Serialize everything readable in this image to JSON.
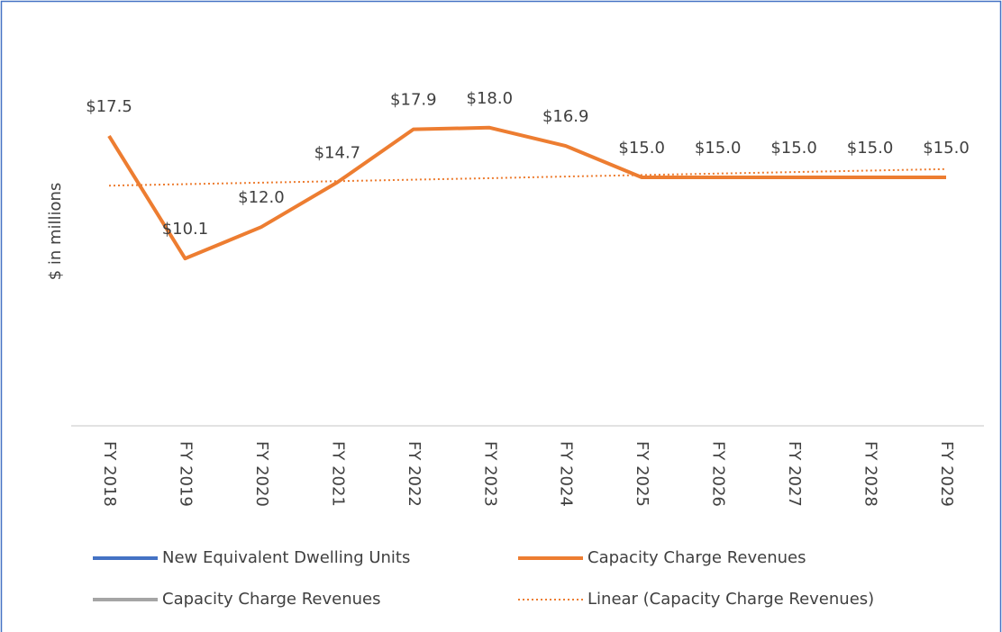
{
  "chart_data": {
    "type": "line",
    "y_label": "$ in millions",
    "categories": [
      "FY 2018",
      "FY 2019",
      "FY 2020",
      "FY 2021",
      "FY 2022",
      "FY 2023",
      "FY 2024",
      "FY 2025",
      "FY 2026",
      "FY 2027",
      "FY 2028",
      "FY 2029"
    ],
    "ylim": [
      0,
      20
    ],
    "series": [
      {
        "name": "New Equivalent Dwelling Units",
        "color": "#4472c4",
        "values": [
          null,
          null,
          null,
          null,
          null,
          null,
          null,
          null,
          null,
          null,
          null,
          null
        ]
      },
      {
        "name": "Capacity Charge Revenues",
        "color": "#ed7d31",
        "values": [
          17.5,
          10.1,
          12.0,
          14.7,
          17.9,
          18.0,
          16.9,
          15.0,
          15.0,
          15.0,
          15.0,
          15.0
        ],
        "value_labels": [
          "$17.5",
          "$10.1",
          "$12.0",
          "$14.7",
          "$17.9",
          "$18.0",
          "$16.9",
          "$15.0",
          "$15.0",
          "$15.0",
          "$15.0",
          "$15.0"
        ]
      },
      {
        "name": "Capacity Charge Revenues",
        "color": "#a5a5a5",
        "values": [
          null,
          null,
          null,
          null,
          null,
          null,
          null,
          null,
          null,
          null,
          null,
          null
        ]
      }
    ],
    "trendline": {
      "name": "Linear (Capacity Charge Revenues)",
      "color": "#ed7d31",
      "style": "dotted",
      "values": [
        14.5,
        14.59,
        14.68,
        14.77,
        14.86,
        14.95,
        15.05,
        15.14,
        15.23,
        15.32,
        15.41,
        15.5
      ]
    }
  }
}
